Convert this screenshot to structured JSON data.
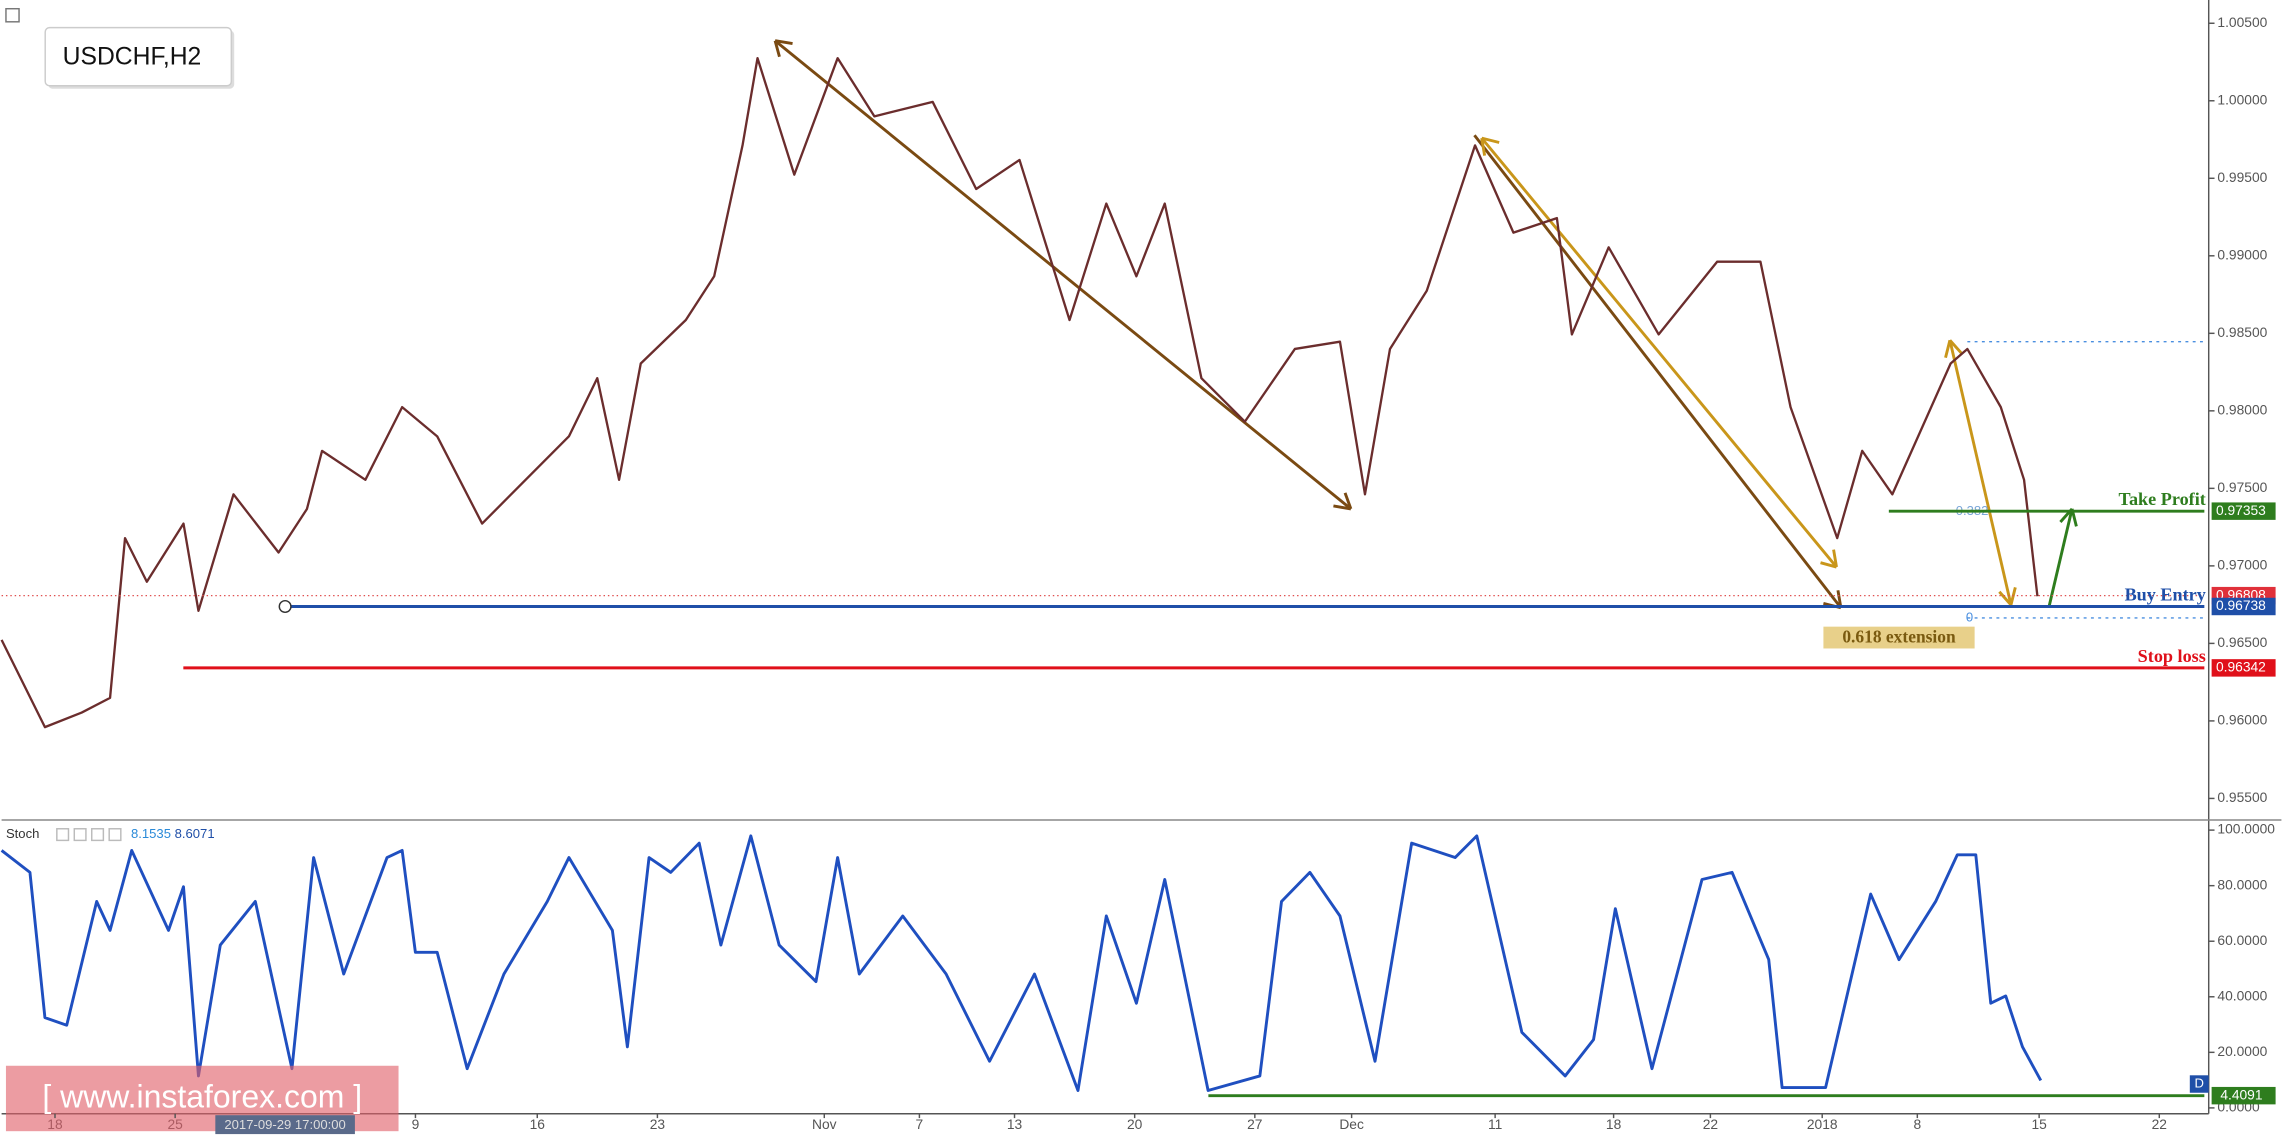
{
  "chart_data": [
    {
      "type": "line",
      "title": "USDCHF,H2",
      "color": "#6b2d2d",
      "x": [
        0,
        2.6,
        4.8,
        6.5,
        7.4,
        8.7,
        10.9,
        11.8,
        13.9,
        16.6,
        18.3,
        19.2,
        21.8,
        24.0,
        26.1,
        28.8,
        31.4,
        34.0,
        35.7,
        37.0,
        38.3,
        41.0,
        42.7,
        44.4,
        45.3,
        47.5,
        50.1,
        52.3,
        55.8,
        58.4,
        61.0,
        64.0,
        66.2,
        68.0,
        69.7,
        71.9,
        74.5,
        77.5,
        80.2,
        81.7,
        83.2,
        85.4,
        88.3,
        90.6,
        93.2,
        94.1,
        96.3,
        99.3,
        102.8,
        105.4,
        107.2,
        110.0,
        111.5,
        113.3,
        116.8,
        117.8,
        119.8,
        121.2,
        122.0
      ],
      "values": [
        0.96523,
        0.9596,
        0.96054,
        0.96148,
        0.97179,
        0.96898,
        0.97273,
        0.9671,
        0.97461,
        0.97086,
        0.97367,
        0.97742,
        0.97555,
        0.98024,
        0.97836,
        0.97273,
        0.97555,
        0.97836,
        0.98211,
        0.97555,
        0.98305,
        0.98586,
        0.98868,
        0.99712,
        1.00275,
        0.99524,
        1.00275,
        0.999,
        0.99993,
        0.99431,
        0.99618,
        0.98586,
        0.99337,
        0.98868,
        0.99337,
        0.98211,
        0.9793,
        0.98399,
        0.98446,
        0.97461,
        0.98399,
        0.98774,
        0.99712,
        0.99149,
        0.99243,
        0.98493,
        0.99055,
        0.98493,
        0.98962,
        0.98962,
        0.98024,
        0.97179,
        0.97742,
        0.97461,
        0.98305,
        0.98399,
        0.98024,
        0.97555,
        0.96804
      ],
      "xlim": [
        0,
        132
      ],
      "xticks": [
        {
          "value": 3.2,
          "label": "18"
        },
        {
          "value": 10.4,
          "label": "25"
        },
        {
          "value": 24.8,
          "label": "9"
        },
        {
          "value": 32.1,
          "label": "16"
        },
        {
          "value": 39.3,
          "label": "23"
        },
        {
          "value": 49.3,
          "label": "Nov"
        },
        {
          "value": 55.0,
          "label": "7"
        },
        {
          "value": 60.7,
          "label": "13"
        },
        {
          "value": 67.9,
          "label": "20"
        },
        {
          "value": 75.1,
          "label": "27"
        },
        {
          "value": 80.9,
          "label": "Dec"
        },
        {
          "value": 89.5,
          "label": "11"
        },
        {
          "value": 96.6,
          "label": "18"
        },
        {
          "value": 102.4,
          "label": "22"
        },
        {
          "value": 109.1,
          "label": "2018"
        },
        {
          "value": 114.8,
          "label": "8"
        },
        {
          "value": 122.1,
          "label": "15"
        },
        {
          "value": 129.3,
          "label": "22"
        }
      ],
      "ylim": [
        0.9537,
        1.0065
      ],
      "yticks": [
        {
          "value": 1.005,
          "label": "1.00500"
        },
        {
          "value": 1.0,
          "label": "1.00000"
        },
        {
          "value": 0.995,
          "label": "0.99500"
        },
        {
          "value": 0.99,
          "label": "0.99000"
        },
        {
          "value": 0.985,
          "label": "0.98500"
        },
        {
          "value": 0.98,
          "label": "0.98000"
        },
        {
          "value": 0.975,
          "label": "0.97500"
        },
        {
          "value": 0.97,
          "label": "0.97000"
        },
        {
          "value": 0.965,
          "label": "0.96500"
        },
        {
          "value": 0.96,
          "label": "0.96000"
        },
        {
          "value": 0.955,
          "label": "0.95500"
        }
      ],
      "levels": [
        {
          "name": "Take Profit",
          "value": 0.97353,
          "color": "#2e7d1e"
        },
        {
          "name": "Buy Entry",
          "value": 0.96738,
          "color": "#1f4fa8"
        },
        {
          "name": "Stop loss",
          "value": 0.96342,
          "color": "#e0101a"
        }
      ],
      "current_price": 0.96808,
      "fib_labels": [
        "0.382",
        "0"
      ],
      "annotation": "0.618 extension",
      "crosshair_time": "2017-09-29 17:00:00",
      "watermark": "[ www.instaforex.com ]"
    },
    {
      "type": "line",
      "title": "Stoch",
      "color": "#1f4fc0",
      "readouts": [
        8.1535,
        8.6071
      ],
      "x": [
        0,
        1.7,
        2.6,
        3.9,
        5.7,
        6.5,
        7.8,
        10.0,
        10.9,
        11.8,
        13.1,
        15.2,
        17.4,
        18.7,
        20.5,
        23.1,
        24.0,
        24.8,
        26.1,
        27.9,
        30.1,
        32.7,
        34.0,
        36.6,
        37.5,
        38.8,
        40.1,
        41.8,
        43.1,
        44.9,
        46.6,
        48.8,
        50.1,
        51.4,
        54.0,
        56.6,
        59.2,
        61.9,
        64.5,
        66.2,
        68.0,
        69.7,
        72.3,
        75.4,
        76.7,
        78.4,
        80.2,
        82.3,
        84.5,
        87.1,
        88.4,
        91.1,
        93.7,
        95.4,
        96.7,
        98.9,
        101.9,
        103.7,
        105.9,
        106.7,
        109.3,
        112.0,
        113.7,
        115.9,
        117.2,
        118.3,
        119.2,
        120.1,
        121.1,
        122.2
      ],
      "values": [
        92.7,
        84.8,
        32.5,
        29.8,
        74.3,
        63.9,
        92.7,
        63.9,
        79.6,
        11.5,
        58.6,
        74.3,
        14.1,
        90.1,
        48.2,
        90.1,
        92.7,
        56.0,
        56.0,
        14.1,
        48.2,
        74.3,
        90.1,
        63.9,
        22.0,
        90.1,
        84.8,
        95.3,
        58.6,
        97.9,
        58.6,
        45.5,
        90.1,
        48.2,
        69.1,
        48.2,
        16.8,
        48.2,
        6.3,
        69.1,
        37.7,
        82.2,
        6.3,
        11.5,
        74.3,
        84.8,
        69.1,
        16.8,
        95.3,
        90.1,
        97.9,
        27.2,
        11.5,
        24.6,
        71.7,
        14.1,
        82.2,
        84.8,
        53.4,
        7.3,
        7.3,
        77.0,
        53.4,
        74.3,
        91.1,
        91.1,
        37.7,
        40.3,
        22.0,
        9.9
      ],
      "xlim": [
        0,
        132
      ],
      "ylim": [
        -2.1,
        103.1
      ],
      "yticks": [
        {
          "value": 100,
          "label": "100.0000"
        },
        {
          "value": 80,
          "label": "80.0000"
        },
        {
          "value": 60,
          "label": "60.0000"
        },
        {
          "value": 40,
          "label": "40.0000"
        },
        {
          "value": 20,
          "label": "20.0000"
        },
        {
          "value": 0,
          "label": "0.0000"
        }
      ],
      "support_level": 4.4091,
      "support_color": "#2e7d1e",
      "flag": "D"
    }
  ]
}
